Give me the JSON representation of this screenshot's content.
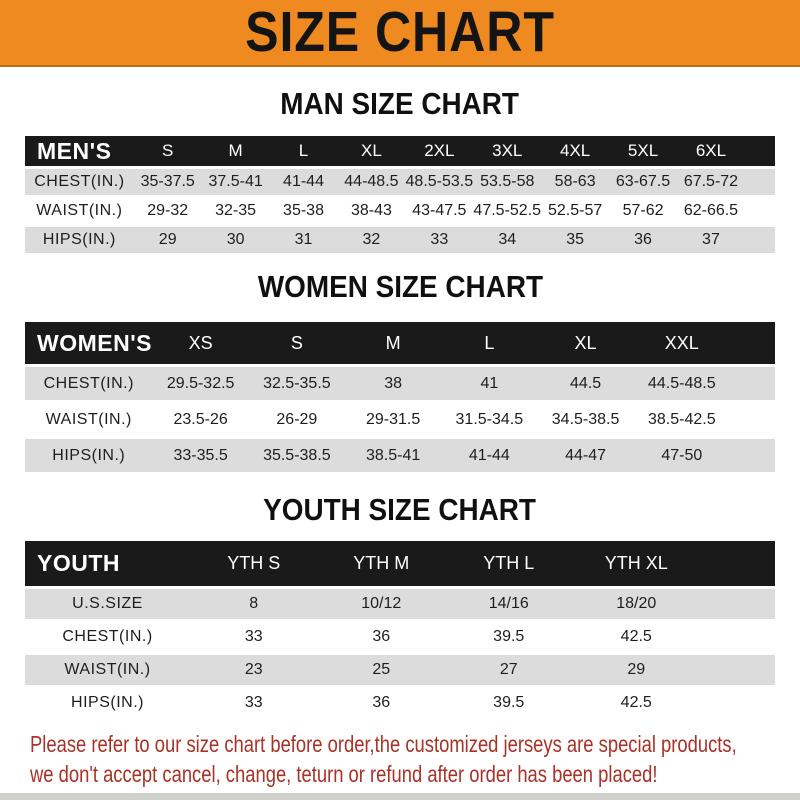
{
  "banner": {
    "title": "SIZE CHART",
    "bg_color": "#EE8A1F",
    "text_color": "#141414"
  },
  "sections": [
    {
      "heading": "MAN SIZE CHART",
      "header_label": "MEN'S",
      "columns": [
        "S",
        "M",
        "L",
        "XL",
        "2XL",
        "3XL",
        "4XL",
        "5XL",
        "6XL"
      ],
      "rows": [
        {
          "label": "CHEST(IN.)",
          "values": [
            "35-37.5",
            "37.5-41",
            "41-44",
            "44-48.5",
            "48.5-53.5",
            "53.5-58",
            "58-63",
            "63-67.5",
            "67.5-72"
          ]
        },
        {
          "label": "WAIST(IN.)",
          "values": [
            "29-32",
            "32-35",
            "35-38",
            "38-43",
            "43-47.5",
            "47.5-52.5",
            "52.5-57",
            "57-62",
            "62-66.5"
          ]
        },
        {
          "label": "HIPS(IN.)",
          "values": [
            "29",
            "30",
            "31",
            "32",
            "33",
            "34",
            "35",
            "36",
            "37"
          ]
        }
      ]
    },
    {
      "heading": "WOMEN SIZE CHART",
      "header_label": "WOMEN'S",
      "columns": [
        "XS",
        "S",
        "M",
        "L",
        "XL",
        "XXL"
      ],
      "rows": [
        {
          "label": "CHEST(IN.)",
          "values": [
            "29.5-32.5",
            "32.5-35.5",
            "38",
            "41",
            "44.5",
            "44.5-48.5"
          ]
        },
        {
          "label": "WAIST(IN.)",
          "values": [
            "23.5-26",
            "26-29",
            "29-31.5",
            "31.5-34.5",
            "34.5-38.5",
            "38.5-42.5"
          ]
        },
        {
          "label": "HIPS(IN.)",
          "values": [
            "33-35.5",
            "35.5-38.5",
            "38.5-41",
            "41-44",
            "44-47",
            "47-50"
          ]
        }
      ]
    },
    {
      "heading": "YOUTH SIZE CHART",
      "header_label": "YOUTH",
      "columns": [
        "YTH S",
        "YTH M",
        "YTH L",
        "YTH XL"
      ],
      "rows": [
        {
          "label": "U.S.SIZE",
          "values": [
            "8",
            "10/12",
            "14/16",
            "18/20"
          ]
        },
        {
          "label": "CHEST(IN.)",
          "values": [
            "33",
            "36",
            "39.5",
            "42.5"
          ]
        },
        {
          "label": "WAIST(IN.)",
          "values": [
            "23",
            "25",
            "27",
            "29"
          ]
        },
        {
          "label": "HIPS(IN.)",
          "values": [
            "33",
            "36",
            "39.5",
            "42.5"
          ]
        }
      ]
    }
  ],
  "footer": {
    "line1": "Please refer to our size chart before order,the customized jerseys are special products,",
    "line2": "we don't accept cancel, change, teturn or refund after order has been placed!",
    "text_color": "#A93227"
  },
  "table_colors": {
    "header_bar": "#1A1A1A",
    "shaded_row": "#DCDCDC",
    "plain_row": "#FFFFFF"
  }
}
